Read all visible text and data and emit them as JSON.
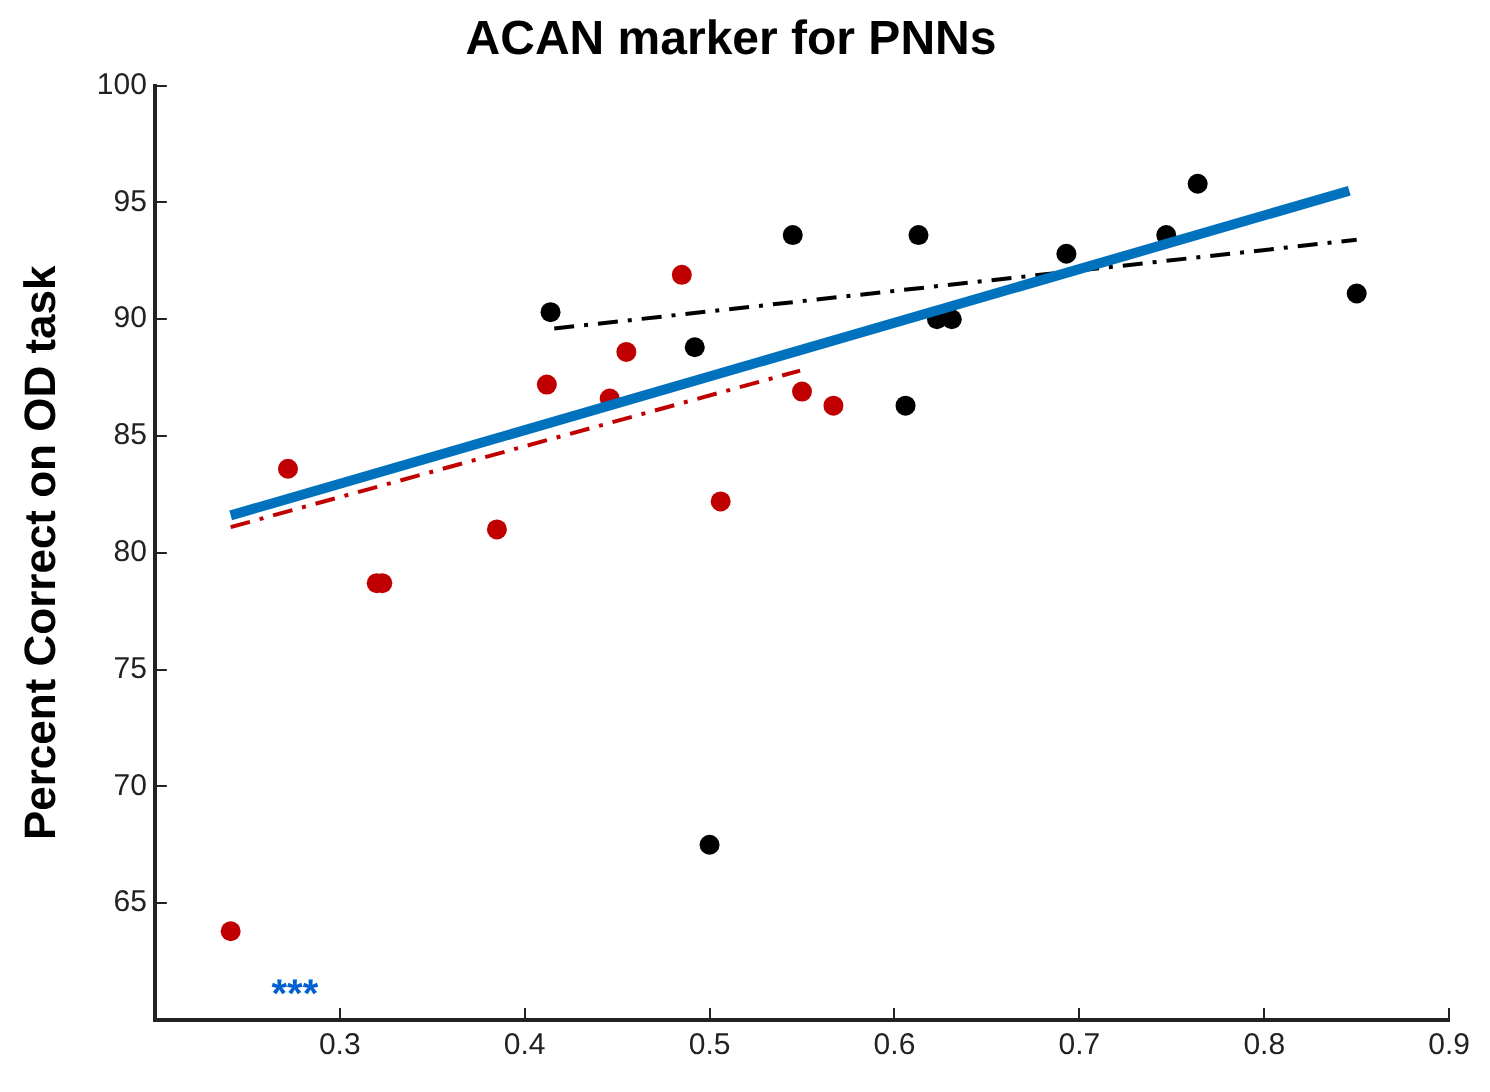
{
  "chart_data": {
    "type": "scatter",
    "title": "ACAN marker for PNNs",
    "ylabel": "Percent Correct on OD task",
    "xlim": [
      0.2,
      0.9
    ],
    "xticks": [
      0.3,
      0.4,
      0.5,
      0.6,
      0.7,
      0.8,
      0.9
    ],
    "ylim": [
      60,
      100
    ],
    "yticks": [
      65,
      70,
      75,
      80,
      85,
      90,
      95,
      100
    ],
    "grid": false,
    "legend": false,
    "marker": "circle",
    "series": [
      {
        "type": "line",
        "color": "#0072bd",
        "line_style": "solid",
        "marker": "none",
        "x": [
          0.241,
          0.846
        ],
        "values": [
          81.6,
          95.5
        ]
      },
      {
        "type": "line",
        "color": "#c00000",
        "line_style": "dashed",
        "marker": "none",
        "x": [
          0.241,
          0.549
        ],
        "values": [
          81.1,
          87.8
        ]
      },
      {
        "type": "line",
        "color": "#000000",
        "line_style": "dashed",
        "marker": "none",
        "x": [
          0.416,
          0.85
        ],
        "values": [
          89.6,
          93.4
        ]
      },
      {
        "color": "#c00000",
        "x": [
          0.241,
          0.272,
          0.32,
          0.323,
          0.385,
          0.412,
          0.446,
          0.455,
          0.485,
          0.506,
          0.55,
          0.567
        ],
        "values": [
          63.8,
          83.6,
          78.7,
          78.7,
          81.0,
          87.2,
          86.6,
          88.6,
          91.9,
          82.2,
          86.9,
          86.3
        ]
      },
      {
        "color": "#000000",
        "x": [
          0.414,
          0.492,
          0.545,
          0.5,
          0.613,
          0.606,
          0.623,
          0.631,
          0.693,
          0.747,
          0.764,
          0.85
        ],
        "values": [
          90.3,
          88.8,
          93.6,
          67.5,
          93.6,
          86.3,
          90.0,
          90.0,
          92.8,
          93.6,
          95.8,
          91.1
        ]
      }
    ],
    "annotations": [
      "***"
    ]
  }
}
